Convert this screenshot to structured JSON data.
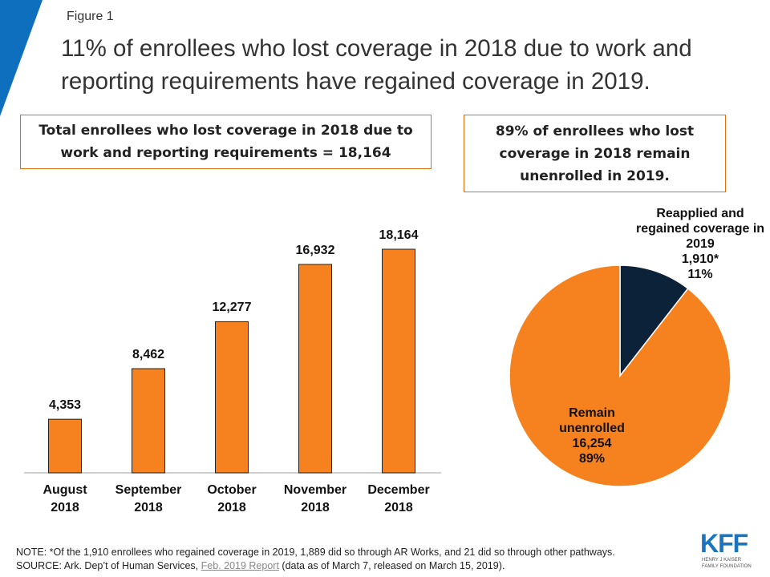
{
  "figure_label": "Figure 1",
  "title": "11% of enrollees who lost coverage in 2018 due to work and reporting requirements have regained coverage in 2019.",
  "chart_data": [
    {
      "type": "bar",
      "title": "Total enrollees who lost coverage in 2018 due to work and reporting requirements = 18,164",
      "categories": [
        "August 2018",
        "September 2018",
        "October 2018",
        "November 2018",
        "December 2018"
      ],
      "values": [
        4353,
        8462,
        12277,
        16932,
        18164
      ],
      "value_labels": [
        "4,353",
        "8,462",
        "12,277",
        "16,932",
        "18,164"
      ],
      "color": "#f5821f"
    },
    {
      "type": "pie",
      "title": "89% of enrollees who lost coverage in 2018 remain unenrolled in 2019.",
      "categories": [
        "Reapplied and regained coverage in 2019",
        "Remain unenrolled"
      ],
      "values": [
        1910,
        16254
      ],
      "value_labels": [
        "1,910*",
        "16,254"
      ],
      "share_labels": [
        "11%",
        "89%"
      ],
      "colors": [
        "#0b2239",
        "#f5821f"
      ]
    }
  ],
  "note": "NOTE: *Of the 1,910 enrollees who regained coverage in 2019, 1,889 did so through AR Works, and 21 did so through other pathways.",
  "source": {
    "prefix": "SOURCE:  Ark. Dep’t of Human Services,",
    "link": "Feb. 2019 Report",
    "suffix": "(data as of March 7, released on March 15, 2019)."
  },
  "logo": {
    "mark": "KFF",
    "line1": "HENRY J KAISER",
    "line2": "FAMILY FOUNDATION"
  }
}
